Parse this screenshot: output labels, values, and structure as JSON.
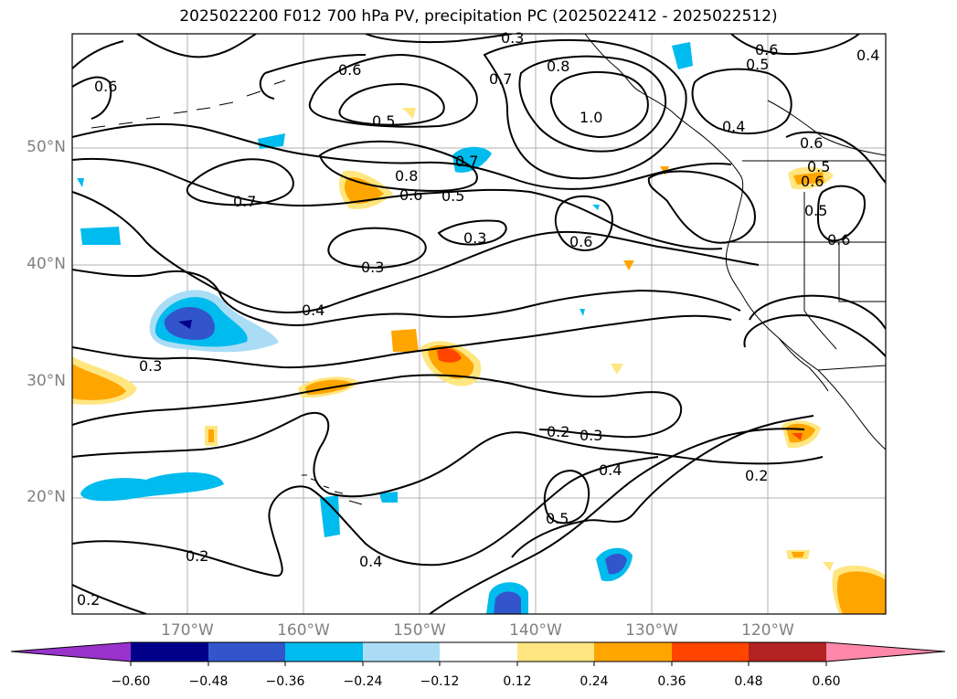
{
  "title": "2025022200 F012 700 hPa PV, precipitation PC (2025022412 - 2025022512)",
  "lat_labels": [
    "50°N",
    "40°N",
    "30°N",
    "20°N"
  ],
  "lon_labels": [
    "170°W",
    "160°W",
    "150°W",
    "140°W",
    "130°W",
    "120°W"
  ],
  "colorbar": {
    "ticks": [
      "−0.60",
      "−0.48",
      "−0.36",
      "−0.24",
      "−0.12",
      "0.12",
      "0.24",
      "0.36",
      "0.48",
      "0.60"
    ],
    "colors": [
      "#9933cc",
      "#00008b",
      "#3355cc",
      "#00bbee",
      "#aaddf5",
      "#ffffff",
      "#ffe680",
      "#ffa500",
      "#ff4500",
      "#b22222",
      "#ff88aa"
    ]
  },
  "contour_labels": [
    "0.3",
    "0.6",
    "0.7",
    "0.8",
    "0.5",
    "0.6",
    "0.4",
    "0.6",
    "0.5",
    "0.8",
    "0.6",
    "0.5",
    "0.7",
    "0.7",
    "0.3",
    "0.3",
    "0.6",
    "0.6",
    "0.5",
    "0.4",
    "0.3",
    "0.2",
    "0.3",
    "0.4",
    "0.5",
    "0.2",
    "0.2",
    "0.4",
    "0.2",
    "1.0",
    "0.4",
    "0.6",
    "0.5",
    "0.6"
  ]
}
